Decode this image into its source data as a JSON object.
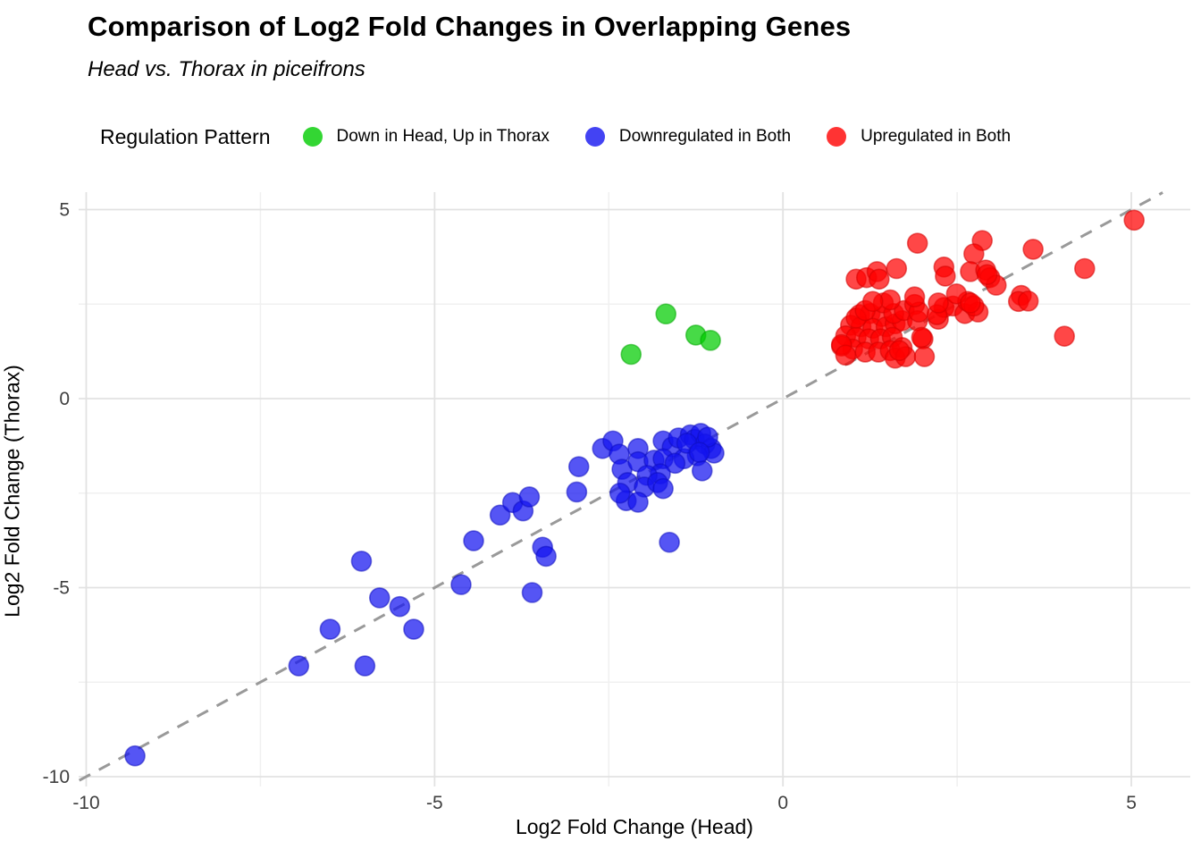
{
  "title": "Comparison of Log2 Fold Changes in Overlapping Genes",
  "subtitle": "Head vs. Thorax in piceifrons",
  "legend": {
    "title": "Regulation Pattern",
    "items": [
      {
        "label": "Down in Head, Up in Thorax",
        "color": "#00CC00"
      },
      {
        "label": "Downregulated in Both",
        "color": "#1414F0"
      },
      {
        "label": "Upregulated in Both",
        "color": "#FF0000"
      }
    ]
  },
  "chart_data": {
    "type": "scatter",
    "title": "Comparison of Log2 Fold Changes in Overlapping Genes",
    "subtitle": "Head vs. Thorax in piceifrons",
    "xlabel": "Log2 Fold Change (Head)",
    "ylabel": "Log2 Fold Change (Thorax)",
    "xlim": [
      -10.1,
      5.85
    ],
    "ylim": [
      -10.25,
      5.45
    ],
    "x_ticks": [
      -10,
      -5,
      0,
      5
    ],
    "y_ticks": [
      5,
      0,
      -5,
      -10
    ],
    "x_minor_ticks": [
      -7.5,
      -2.5,
      2.5
    ],
    "y_minor_ticks": [
      2.5,
      -2.5,
      -7.5
    ],
    "grid": true,
    "legend_position": "top",
    "identity_line": {
      "show": true,
      "style": "dashed",
      "color": "#999999"
    },
    "point_alpha": 0.72,
    "series": [
      {
        "name": "Down in Head, Up in Thorax",
        "color": "#00CC00",
        "edge_color": "#00A800",
        "points": [
          [
            -2.18,
            1.17
          ],
          [
            -1.68,
            2.24
          ],
          [
            -1.25,
            1.68
          ],
          [
            -1.04,
            1.54
          ]
        ]
      },
      {
        "name": "Downregulated in Both",
        "color": "#1414F0",
        "edge_color": "#0F0FC0",
        "points": [
          [
            -9.3,
            -9.45
          ],
          [
            -6.95,
            -7.07
          ],
          [
            -6.0,
            -7.07
          ],
          [
            -6.5,
            -6.1
          ],
          [
            -5.3,
            -6.1
          ],
          [
            -5.5,
            -5.5
          ],
          [
            -5.79,
            -5.27
          ],
          [
            -4.62,
            -4.92
          ],
          [
            -6.05,
            -4.3
          ],
          [
            -4.44,
            -3.76
          ],
          [
            -4.06,
            -3.08
          ],
          [
            -3.88,
            -2.75
          ],
          [
            -3.73,
            -2.97
          ],
          [
            -3.64,
            -2.6
          ],
          [
            -3.45,
            -3.93
          ],
          [
            -3.4,
            -4.17
          ],
          [
            -3.6,
            -5.13
          ],
          [
            -2.96,
            -2.47
          ],
          [
            -1.63,
            -3.8
          ],
          [
            -2.93,
            -1.8
          ],
          [
            -2.59,
            -1.32
          ],
          [
            -2.44,
            -1.12
          ],
          [
            -2.35,
            -1.47
          ],
          [
            -2.31,
            -1.87
          ],
          [
            -2.08,
            -1.32
          ],
          [
            -2.08,
            -1.67
          ],
          [
            -1.85,
            -1.63
          ],
          [
            -1.72,
            -1.12
          ],
          [
            -1.59,
            -1.28
          ],
          [
            -1.5,
            -1.04
          ],
          [
            -1.33,
            -0.96
          ],
          [
            -1.27,
            -1.08
          ],
          [
            -1.18,
            -0.92
          ],
          [
            -1.12,
            -1.2
          ],
          [
            -1.03,
            -1.32
          ],
          [
            -0.99,
            -1.44
          ],
          [
            -1.23,
            -1.51
          ],
          [
            -1.42,
            -1.59
          ],
          [
            -1.72,
            -1.59
          ],
          [
            -1.55,
            -1.71
          ],
          [
            -1.16,
            -1.91
          ],
          [
            -1.76,
            -1.99
          ],
          [
            -1.95,
            -2.03
          ],
          [
            -2.23,
            -2.22
          ],
          [
            -1.99,
            -2.34
          ],
          [
            -1.8,
            -2.22
          ],
          [
            -2.25,
            -2.7
          ],
          [
            -2.08,
            -2.74
          ],
          [
            -2.34,
            -2.5
          ],
          [
            -1.72,
            -2.38
          ],
          [
            -1.08,
            -1.02
          ],
          [
            -1.38,
            -1.18
          ],
          [
            -1.2,
            -1.42
          ]
        ]
      },
      {
        "name": "Upregulated in Both",
        "color": "#FF0000",
        "edge_color": "#D40000",
        "points": [
          [
            1.1,
            2.22
          ],
          [
            1.25,
            2.25
          ],
          [
            1.42,
            2.17
          ],
          [
            0.97,
            1.94
          ],
          [
            1.12,
            1.9
          ],
          [
            1.29,
            1.86
          ],
          [
            1.48,
            1.9
          ],
          [
            1.61,
            1.98
          ],
          [
            1.71,
            2.06
          ],
          [
            0.9,
            1.66
          ],
          [
            1.05,
            1.62
          ],
          [
            1.23,
            1.58
          ],
          [
            1.4,
            1.58
          ],
          [
            1.57,
            1.62
          ],
          [
            1.0,
            1.31
          ],
          [
            1.18,
            1.23
          ],
          [
            1.37,
            1.23
          ],
          [
            1.54,
            1.27
          ],
          [
            1.71,
            1.35
          ],
          [
            0.84,
            1.39
          ],
          [
            1.61,
            1.07
          ],
          [
            1.76,
            1.11
          ],
          [
            0.84,
            1.43
          ],
          [
            0.9,
            1.15
          ],
          [
            1.05,
            2.13
          ],
          [
            1.18,
            2.33
          ],
          [
            1.44,
            2.53
          ],
          [
            1.59,
            2.25
          ],
          [
            1.74,
            2.33
          ],
          [
            1.89,
            2.49
          ],
          [
            1.93,
            2.06
          ],
          [
            2.01,
            1.58
          ],
          [
            2.03,
            1.11
          ],
          [
            2.23,
            2.1
          ],
          [
            2.31,
            2.41
          ],
          [
            2.44,
            2.45
          ],
          [
            2.61,
            2.25
          ],
          [
            2.65,
            2.57
          ],
          [
            2.8,
            2.29
          ],
          [
            1.99,
            1.62
          ],
          [
            1.95,
            2.29
          ],
          [
            2.21,
            2.22
          ],
          [
            2.74,
            2.45
          ],
          [
            1.67,
            1.27
          ],
          [
            1.93,
            4.11
          ],
          [
            1.05,
            3.16
          ],
          [
            1.2,
            3.2
          ],
          [
            1.35,
            3.36
          ],
          [
            1.38,
            3.16
          ],
          [
            1.63,
            3.44
          ],
          [
            2.31,
            3.48
          ],
          [
            2.33,
            3.24
          ],
          [
            2.86,
            4.18
          ],
          [
            2.74,
            3.83
          ],
          [
            2.69,
            3.36
          ],
          [
            2.91,
            3.4
          ],
          [
            2.97,
            3.2
          ],
          [
            3.06,
            3.0
          ],
          [
            3.59,
            3.95
          ],
          [
            3.42,
            2.73
          ],
          [
            1.89,
            2.69
          ],
          [
            1.54,
            2.61
          ],
          [
            1.29,
            2.57
          ],
          [
            2.23,
            2.53
          ],
          [
            2.49,
            2.77
          ],
          [
            2.69,
            2.53
          ],
          [
            5.04,
            4.72
          ],
          [
            4.33,
            3.44
          ],
          [
            2.93,
            3.28
          ],
          [
            3.38,
            2.57
          ],
          [
            3.52,
            2.58
          ],
          [
            4.04,
            1.65
          ]
        ]
      }
    ]
  }
}
